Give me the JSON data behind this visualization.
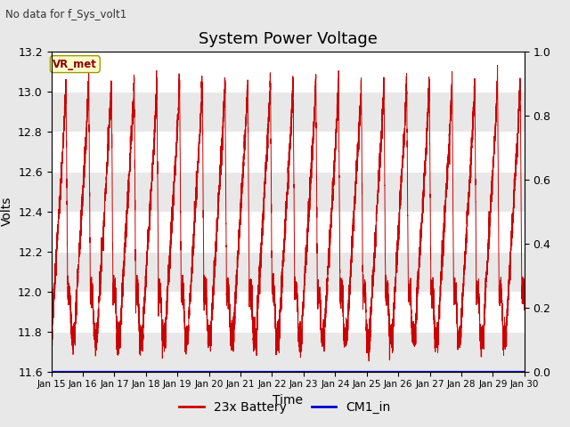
{
  "title": "System Power Voltage",
  "top_left_text": "No data for f_Sys_volt1",
  "xlabel": "Time",
  "ylabel": "Volts",
  "ylim_left": [
    11.6,
    13.2
  ],
  "ylim_right": [
    0.0,
    1.0
  ],
  "yticks_left": [
    11.6,
    11.8,
    12.0,
    12.2,
    12.4,
    12.6,
    12.8,
    13.0,
    13.2
  ],
  "yticks_right": [
    0.0,
    0.2,
    0.4,
    0.6,
    0.8,
    1.0
  ],
  "xtick_labels": [
    "Jan 15",
    "Jan 16",
    "Jan 17",
    "Jan 18",
    "Jan 19",
    "Jan 20",
    "Jan 21",
    "Jan 22",
    "Jan 23",
    "Jan 24",
    "Jan 25",
    "Jan 26",
    "Jan 27",
    "Jan 28",
    "Jan 29",
    "Jan 30"
  ],
  "fig_bg_color": "#e8e8e8",
  "plot_bg_color": "#ffffff",
  "battery_color": "#cc0000",
  "cm1_color": "#0000cc",
  "legend_battery": "23x Battery",
  "legend_cm1": "CM1_in",
  "annotation_text": "VR_met",
  "grid_color": "#d0d0d0",
  "title_fontsize": 13,
  "band_colors": [
    "#e8e8e8",
    "#ffffff"
  ],
  "band_edges": [
    11.6,
    11.8,
    12.0,
    12.2,
    12.4,
    12.6,
    12.8,
    13.0,
    13.2
  ]
}
